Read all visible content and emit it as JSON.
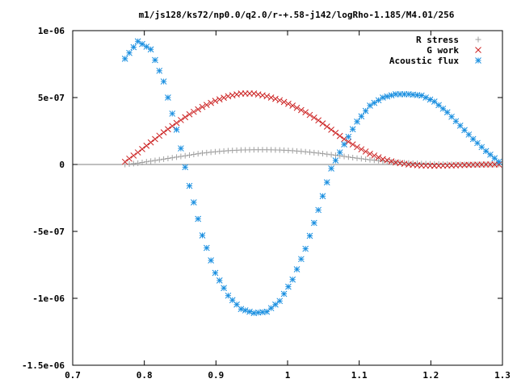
{
  "chart_data": {
    "type": "scatter",
    "title": "m1/js128/ks72/np0.0/q2.0/r-+.58-j142/logRho-1.185/M4.01/256",
    "xlabel": "",
    "ylabel": "",
    "xlim": [
      0.7,
      1.3
    ],
    "ylim": [
      -1.5e-06,
      1e-06
    ],
    "x_ticks": [
      0.7,
      0.8,
      0.9,
      1,
      1.1,
      1.2,
      1.3
    ],
    "x_tick_labels": [
      "0.7",
      "0.8",
      "0.9",
      "1",
      "1.1",
      "1.2",
      "1.3"
    ],
    "y_ticks": [
      -1.5e-06,
      -1e-06,
      -5e-07,
      0,
      5e-07,
      1e-06
    ],
    "y_tick_labels": [
      "-1.5e-06",
      "-1e-06",
      "-5e-07",
      "0",
      "5e-07",
      "1e-06"
    ],
    "grid": false,
    "legend_position": "top-right",
    "x": [
      0.773,
      0.791,
      0.809,
      0.827,
      0.845,
      0.863,
      0.881,
      0.899,
      0.917,
      0.935,
      0.953,
      0.971,
      0.989,
      1.007,
      1.025,
      1.043,
      1.061,
      1.079,
      1.097,
      1.115,
      1.133,
      1.151,
      1.169,
      1.187,
      1.205,
      1.223,
      1.241,
      1.259,
      1.277,
      1.295
    ],
    "series": [
      {
        "name": "R stress",
        "color": "#a0a0a0",
        "marker": "plus",
        "values": [
          0,
          1e-08,
          2.5e-08,
          4e-08,
          5.5e-08,
          7e-08,
          8.5e-08,
          9.5e-08,
          1.03e-07,
          1.08e-07,
          1.1e-07,
          1.1e-07,
          1.08e-07,
          1.03e-07,
          9.5e-08,
          8.5e-08,
          7.3e-08,
          6e-08,
          4.7e-08,
          3.5e-08,
          2.5e-08,
          1.7e-08,
          1.1e-08,
          7e-09,
          4e-09,
          2e-09,
          1e-09,
          0,
          0,
          0
        ]
      },
      {
        "name": "G work",
        "color": "#cc2222",
        "marker": "cross",
        "values": [
          2e-08,
          9e-08,
          1.65e-07,
          2.4e-07,
          3.1e-07,
          3.75e-07,
          4.3e-07,
          4.75e-07,
          5.1e-07,
          5.3e-07,
          5.3e-07,
          5.1e-07,
          4.8e-07,
          4.4e-07,
          3.9e-07,
          3.3e-07,
          2.6e-07,
          1.9e-07,
          1.3e-07,
          8e-08,
          4e-08,
          1.5e-08,
          0,
          -8e-09,
          -1e-08,
          -8e-09,
          -5e-09,
          -2e-09,
          0,
          0
        ]
      },
      {
        "name": "Acoustic flux",
        "color": "#1a8fe0",
        "marker": "star",
        "values": [
          7.9e-07,
          9.2e-07,
          8.6e-07,
          6.2e-07,
          2.6e-07,
          -1.6e-07,
          -5.3e-07,
          -8.1e-07,
          -9.8e-07,
          -1.08e-06,
          -1.11e-06,
          -1.1e-06,
          -1.02e-06,
          -8.6e-07,
          -6.3e-07,
          -3.4e-07,
          -3e-08,
          1.5e-07,
          3.2e-07,
          4.4e-07,
          5e-07,
          5.25e-07,
          5.25e-07,
          5.15e-07,
          4.7e-07,
          3.9e-07,
          2.9e-07,
          1.9e-07,
          1e-07,
          2e-08
        ]
      }
    ]
  }
}
